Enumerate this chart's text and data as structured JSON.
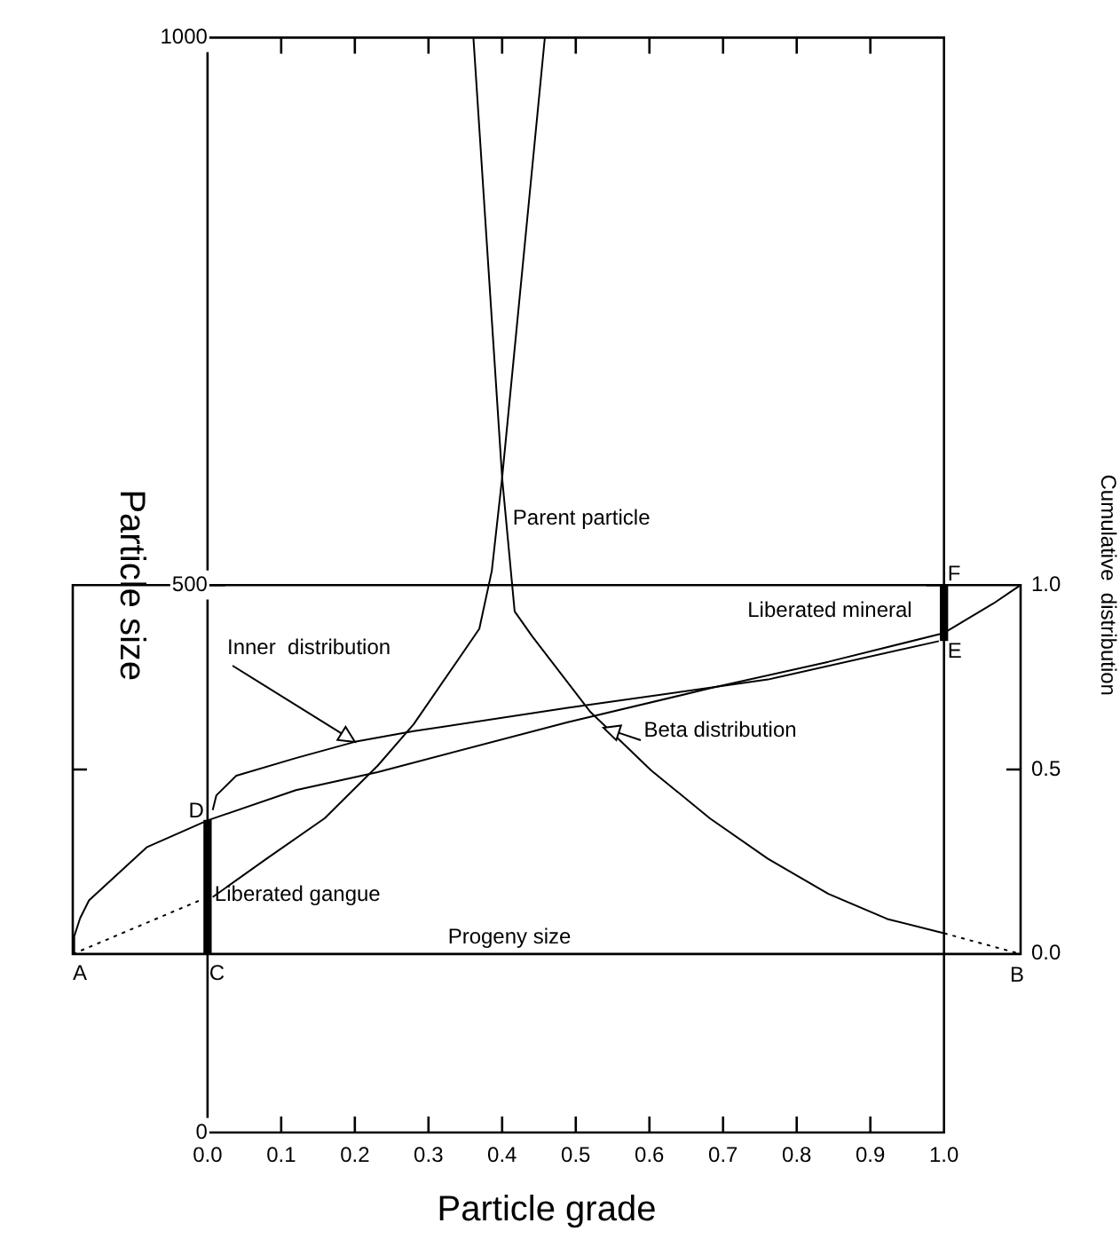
{
  "chart_data": {
    "type": "line",
    "xlabel": "Particle grade",
    "ylabel": "Particle size",
    "y2label": "Cumulative  distribution",
    "xlim": [
      -0.183,
      1.104
    ],
    "xticks": [
      {
        "value": 0,
        "label": "0.0"
      },
      0.1,
      0.2,
      0.3,
      0.4,
      0.5,
      0.6,
      0.7,
      0.8,
      0.9,
      {
        "value": 1,
        "label": "1.0"
      }
    ],
    "ylim": [
      0,
      1000
    ],
    "yticks": [
      0,
      500,
      1000
    ],
    "y2lim": [
      -0.484,
      2.484
    ],
    "y2ticks": [
      {
        "value": 0,
        "label": "0.0"
      },
      0.5,
      {
        "value": 1,
        "label": "1.0"
      }
    ],
    "marker": "none",
    "series": [
      {
        "color": "#000000",
        "x": [
          0.007,
          0.08,
          0.159,
          0.231,
          0.28,
          0.369,
          0.386,
          0.4,
          0.458
        ],
        "values": [
          215,
          250,
          287,
          335,
          373,
          460,
          513,
          598,
          1000
        ]
      },
      {
        "color": "#000000",
        "x": [
          0.361,
          0.4,
          0.417,
          0.441,
          0.52,
          0.602,
          0.682,
          0.761,
          0.843,
          0.923,
          1.0
        ],
        "values": [
          1000,
          598,
          476,
          453,
          384,
          331,
          287,
          250,
          218,
          195,
          182
        ]
      },
      {
        "color": "#000000",
        "line_style": "dotted",
        "x": [
          -0.183,
          -0.007
        ],
        "values": [
          163,
          213
        ]
      },
      {
        "color": "#000000",
        "line_style": "dotted",
        "x": [
          1,
          1.104
        ],
        "values": [
          182,
          163
        ]
      },
      {
        "color": "#000000",
        "axis": "y2",
        "x": [
          -0.183,
          -0.181,
          -0.173,
          -0.161,
          -0.082,
          0,
          0.12,
          0.231,
          0.489,
          0.682,
          0.843,
          1.0,
          1.067,
          1.104
        ],
        "values": [
          0,
          0.048,
          0.097,
          0.145,
          0.29,
          0.362,
          0.444,
          0.493,
          0.628,
          0.72,
          0.792,
          0.87,
          0.95,
          1.0
        ]
      },
      {
        "color": "#000000",
        "axis": "y2",
        "x": [
          0.007,
          0.012,
          0.039,
          0.12,
          0.2,
          0.28,
          0.489,
          0.761,
          0.993
        ],
        "values": [
          0.39,
          0.43,
          0.483,
          0.531,
          0.575,
          0.604,
          0.667,
          0.744,
          0.848
        ]
      },
      {
        "type": "bar",
        "color": "#000000",
        "axis": "y2",
        "x": [
          0,
          1
        ],
        "values": [
          0.362,
          0.15
        ],
        "base": [
          0,
          0.85
        ]
      }
    ],
    "annotations": [
      {
        "text": "Parent particle",
        "x": 0.4,
        "y": 598
      },
      "Inner  distribution",
      {
        "text": "Beta distribution",
        "x": 0.537,
        "y": 370
      },
      {
        "text": "Liberated gangue",
        "x": 0,
        "y": 215
      },
      {
        "text": "Liberated mineral",
        "x": 1,
        "y": 476
      },
      "Progeny size",
      {
        "text": "A",
        "x": -0.183,
        "y": 163
      },
      {
        "text": "B",
        "x": 1.104,
        "y": 163
      },
      {
        "text": "C",
        "x": 0,
        "y": 163
      },
      {
        "text": "D",
        "x": 0,
        "y": 285
      },
      {
        "text": "E",
        "x": 1,
        "y": 449
      },
      {
        "text": "F",
        "x": 1,
        "y": 500
      }
    ]
  }
}
